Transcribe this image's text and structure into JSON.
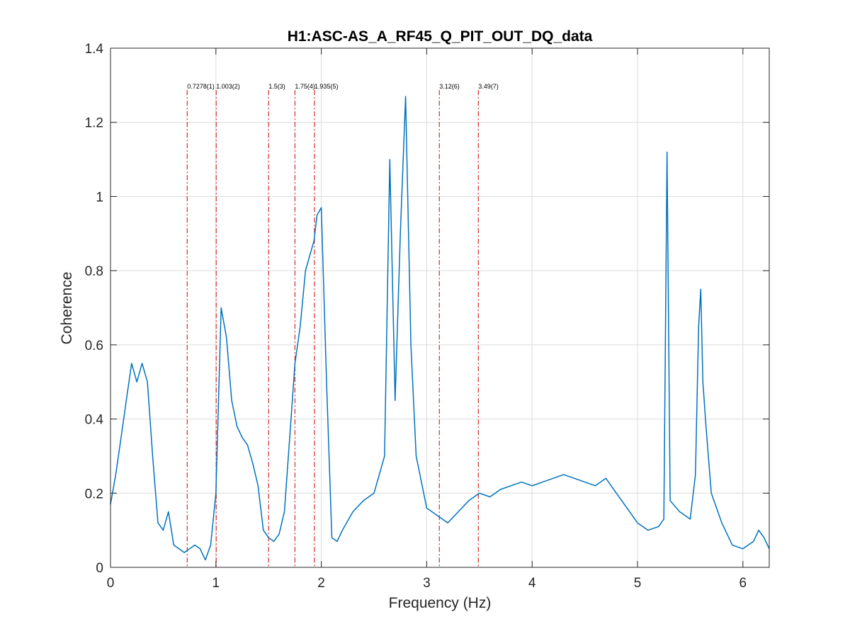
{
  "chart_data": {
    "type": "line",
    "title": "H1:ASC-AS_A_RF45_Q_PIT_OUT_DQ_data",
    "xlabel": "Frequency (Hz)",
    "ylabel": "Coherence",
    "xlim": [
      0,
      6.25
    ],
    "ylim": [
      0,
      1.4
    ],
    "xticks": [
      0,
      1,
      2,
      3,
      4,
      5,
      6
    ],
    "xtick_labels": [
      "0",
      "1",
      "2",
      "3",
      "4",
      "5",
      "6"
    ],
    "yticks": [
      0,
      0.2,
      0.4,
      0.6,
      0.8,
      1,
      1.2,
      1.4
    ],
    "ytick_labels": [
      "0",
      "0.2",
      "0.4",
      "0.6",
      "0.8",
      "1",
      "1.2",
      "1.4"
    ],
    "grid": true,
    "legend": "none",
    "series_color": "#0072BD",
    "vline_color": "#D62728",
    "vlines": [
      {
        "x": 0.7278,
        "label": "0.7278(1)"
      },
      {
        "x": 1.003,
        "label": "1.003(2)"
      },
      {
        "x": 1.5,
        "label": "1.5(3)"
      },
      {
        "x": 1.75,
        "label": "1.75(4)"
      },
      {
        "x": 1.935,
        "label": "1.935(5)"
      },
      {
        "x": 3.12,
        "label": "3.12(6)"
      },
      {
        "x": 3.49,
        "label": "3.49(7)"
      }
    ],
    "series": [
      {
        "x": [
          0,
          0.05,
          0.1,
          0.15,
          0.2,
          0.25,
          0.3,
          0.35,
          0.4,
          0.45,
          0.5,
          0.55,
          0.6,
          0.65,
          0.7,
          0.75,
          0.8,
          0.85,
          0.9,
          0.95,
          1.0,
          1.05,
          1.1,
          1.15,
          1.2,
          1.25,
          1.3,
          1.35,
          1.4,
          1.45,
          1.5,
          1.55,
          1.6,
          1.65,
          1.7,
          1.75,
          1.8,
          1.85,
          1.9,
          1.93,
          1.96,
          2.0,
          2.05,
          2.1,
          2.15,
          2.2,
          2.3,
          2.4,
          2.5,
          2.6,
          2.65,
          2.7,
          2.75,
          2.8,
          2.85,
          2.9,
          3.0,
          3.1,
          3.2,
          3.3,
          3.4,
          3.5,
          3.6,
          3.7,
          3.8,
          3.9,
          4.0,
          4.1,
          4.2,
          4.3,
          4.4,
          4.5,
          4.6,
          4.7,
          4.8,
          4.9,
          5.0,
          5.1,
          5.2,
          5.25,
          5.28,
          5.31,
          5.4,
          5.5,
          5.55,
          5.58,
          5.6,
          5.62,
          5.65,
          5.7,
          5.8,
          5.9,
          6.0,
          6.1,
          6.15,
          6.2,
          6.25
        ],
        "y": [
          0.17,
          0.25,
          0.35,
          0.45,
          0.55,
          0.5,
          0.55,
          0.5,
          0.3,
          0.12,
          0.1,
          0.15,
          0.06,
          0.05,
          0.04,
          0.05,
          0.06,
          0.05,
          0.02,
          0.06,
          0.2,
          0.7,
          0.62,
          0.45,
          0.38,
          0.35,
          0.33,
          0.28,
          0.22,
          0.1,
          0.08,
          0.07,
          0.09,
          0.15,
          0.35,
          0.55,
          0.65,
          0.8,
          0.85,
          0.88,
          0.95,
          0.97,
          0.5,
          0.08,
          0.07,
          0.1,
          0.15,
          0.18,
          0.2,
          0.3,
          1.1,
          0.45,
          0.9,
          1.27,
          0.6,
          0.3,
          0.16,
          0.14,
          0.12,
          0.15,
          0.18,
          0.2,
          0.19,
          0.21,
          0.22,
          0.23,
          0.22,
          0.23,
          0.24,
          0.25,
          0.24,
          0.23,
          0.22,
          0.24,
          0.2,
          0.16,
          0.12,
          0.1,
          0.11,
          0.13,
          1.12,
          0.18,
          0.15,
          0.13,
          0.25,
          0.65,
          0.75,
          0.5,
          0.38,
          0.2,
          0.12,
          0.06,
          0.05,
          0.07,
          0.1,
          0.08,
          0.05
        ]
      }
    ]
  }
}
